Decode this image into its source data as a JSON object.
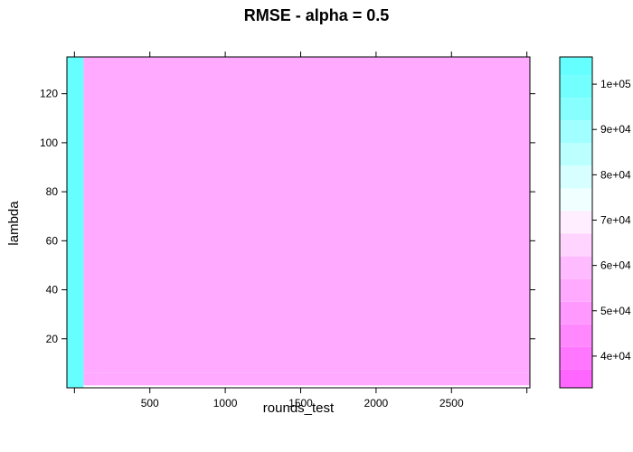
{
  "chart_data": {
    "type": "heatmap",
    "title": "RMSE - alpha = 0.5",
    "xlabel": "rounds_test",
    "ylabel": "lambda",
    "xlim": [
      -50,
      3020
    ],
    "ylim": [
      0,
      135
    ],
    "x_ticks": [
      0,
      500,
      1000,
      1500,
      2000,
      2500,
      3000
    ],
    "x_tick_labels": [
      "",
      "500",
      "1000",
      "1500",
      "2000",
      "2500",
      ""
    ],
    "y_ticks": [
      20,
      40,
      60,
      80,
      100,
      120
    ],
    "y_tick_labels": [
      "20",
      "40",
      "60",
      "80",
      "100",
      "120"
    ],
    "colorbar": {
      "range": [
        33000,
        106000
      ],
      "ticks": [
        40000,
        50000,
        60000,
        70000,
        80000,
        90000,
        100000
      ],
      "tick_labels": [
        "4e+04",
        "5e+04",
        "6e+04",
        "7e+04",
        "8e+04",
        "9e+04",
        "1e+05"
      ],
      "bands": [
        {
          "from": 33000,
          "to": 37000,
          "color": "#ff66ff"
        },
        {
          "from": 37000,
          "to": 42000,
          "color": "#ff77ff"
        },
        {
          "from": 42000,
          "to": 47000,
          "color": "#ff88ff"
        },
        {
          "from": 47000,
          "to": 52000,
          "color": "#ff99ff"
        },
        {
          "from": 52000,
          "to": 57000,
          "color": "#ffaaff"
        },
        {
          "from": 57000,
          "to": 62000,
          "color": "#ffbbff"
        },
        {
          "from": 62000,
          "to": 67000,
          "color": "#ffd4ff"
        },
        {
          "from": 67000,
          "to": 72000,
          "color": "#ffeeff"
        },
        {
          "from": 72000,
          "to": 77000,
          "color": "#f0ffff"
        },
        {
          "from": 77000,
          "to": 82000,
          "color": "#d8ffff"
        },
        {
          "from": 82000,
          "to": 87000,
          "color": "#bbffff"
        },
        {
          "from": 87000,
          "to": 92000,
          "color": "#a2ffff"
        },
        {
          "from": 92000,
          "to": 97000,
          "color": "#88ffff"
        },
        {
          "from": 97000,
          "to": 102000,
          "color": "#74ffff"
        },
        {
          "from": 102000,
          "to": 106000,
          "color": "#66ffff"
        }
      ]
    },
    "regions": [
      {
        "x": [
          -50,
          60
        ],
        "y": [
          0,
          135
        ],
        "value": 103000
      },
      {
        "x": [
          60,
          3020
        ],
        "y": [
          6,
          135
        ],
        "value": 55000
      },
      {
        "x": [
          150,
          3020
        ],
        "y": [
          1,
          6
        ],
        "value": 52500
      },
      {
        "x": [
          60,
          150
        ],
        "y": [
          1,
          6
        ],
        "value": 55000
      }
    ]
  }
}
